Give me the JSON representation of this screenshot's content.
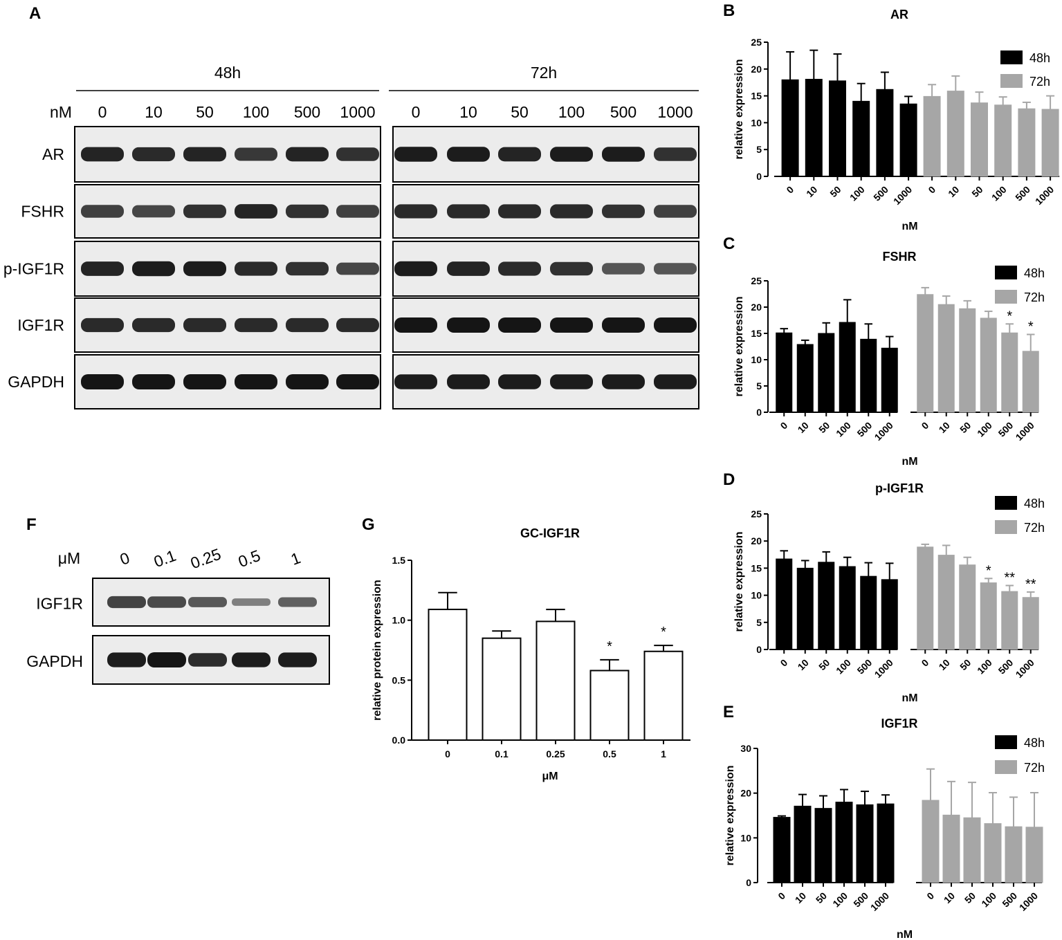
{
  "blot_a": {
    "letter": "A",
    "unit": "nM",
    "time_groups": [
      {
        "label": "48h",
        "concentrations": [
          "0",
          "10",
          "50",
          "100",
          "500",
          "1000"
        ]
      },
      {
        "label": "72h",
        "concentrations": [
          "0",
          "10",
          "50",
          "100",
          "500",
          "1000"
        ]
      }
    ],
    "proteins": [
      "AR",
      "FSHR",
      "p-IGF1R",
      "IGF1R",
      "GAPDH"
    ],
    "band_intensity": {
      "48h": [
        [
          0.9,
          0.85,
          0.9,
          0.75,
          0.9,
          0.8
        ],
        [
          0.7,
          0.65,
          0.8,
          0.9,
          0.8,
          0.7
        ],
        [
          0.9,
          0.95,
          0.95,
          0.85,
          0.8,
          0.65
        ],
        [
          0.85,
          0.85,
          0.85,
          0.85,
          0.85,
          0.85
        ],
        [
          1.0,
          1.0,
          1.0,
          1.0,
          1.0,
          1.0
        ]
      ],
      "72h": [
        [
          0.95,
          0.95,
          0.9,
          0.95,
          0.95,
          0.8
        ],
        [
          0.85,
          0.85,
          0.85,
          0.85,
          0.8,
          0.7
        ],
        [
          0.95,
          0.9,
          0.85,
          0.8,
          0.55,
          0.55
        ],
        [
          1.0,
          1.0,
          1.0,
          1.0,
          1.0,
          1.0
        ],
        [
          0.95,
          0.95,
          0.95,
          0.95,
          0.95,
          0.95
        ]
      ]
    }
  },
  "blot_f": {
    "letter": "F",
    "unit": "μM",
    "concentrations": [
      "0",
      "0.1",
      "0.25",
      "0.5",
      "1"
    ],
    "proteins": [
      "IGF1R",
      "GAPDH"
    ],
    "band_intensity": [
      [
        0.7,
        0.65,
        0.55,
        0.3,
        0.5
      ],
      [
        0.95,
        1.0,
        0.85,
        0.95,
        0.95
      ]
    ]
  },
  "colors": {
    "series_48h": "#000000",
    "series_72h": "#a6a6a6",
    "bar_white": "#ffffff",
    "blot_bg": "#ececec",
    "band": "#151515"
  },
  "chart_data": [
    {
      "id": "B",
      "letter": "B",
      "type": "bar",
      "title": "AR",
      "xlabel": "nM",
      "ylabel": "relative expression",
      "categories": [
        "0",
        "10",
        "50",
        "100",
        "500",
        "1000"
      ],
      "ylim": [
        0,
        25
      ],
      "yticks": [
        "0",
        "5",
        "10",
        "15",
        "20",
        "25"
      ],
      "legend": "top-right",
      "series": [
        {
          "name": "48h",
          "values": [
            18,
            18.1,
            17.8,
            14,
            16.2,
            13.5
          ],
          "errors": [
            5.2,
            5.4,
            5,
            3.3,
            3.2,
            1.4
          ],
          "stars": [
            "",
            "",
            "",
            "",
            "",
            ""
          ]
        },
        {
          "name": "72h",
          "values": [
            14.9,
            15.9,
            13.7,
            13.3,
            12.6,
            12.5
          ],
          "errors": [
            2.2,
            2.8,
            2,
            1.5,
            1.2,
            2.5
          ],
          "stars": [
            "",
            "",
            "",
            "",
            "",
            ""
          ]
        }
      ]
    },
    {
      "id": "C",
      "letter": "C",
      "type": "bar",
      "title": "FSHR",
      "xlabel": "nM",
      "ylabel": "relative expression",
      "categories": [
        "0",
        "10",
        "50",
        "100",
        "500",
        "1000"
      ],
      "ylim": [
        0,
        25
      ],
      "yticks": [
        "0",
        "5",
        "10",
        "15",
        "20",
        "25"
      ],
      "legend": "top-right",
      "series": [
        {
          "name": "48h",
          "values": [
            15.1,
            12.9,
            15,
            17.1,
            13.9,
            12.2
          ],
          "errors": [
            0.8,
            0.8,
            2,
            4.3,
            2.9,
            2.2
          ],
          "stars": [
            "",
            "",
            "",
            "",
            "",
            ""
          ]
        },
        {
          "name": "72h",
          "values": [
            22.4,
            20.5,
            19.7,
            17.9,
            15.1,
            11.6
          ],
          "errors": [
            1.3,
            1.6,
            1.5,
            1.3,
            1.7,
            3.2
          ],
          "stars": [
            "",
            "",
            "",
            "",
            "*",
            "*"
          ]
        }
      ]
    },
    {
      "id": "D",
      "letter": "D",
      "type": "bar",
      "title": "p-IGF1R",
      "xlabel": "nM",
      "ylabel": "relative expression",
      "categories": [
        "0",
        "10",
        "50",
        "100",
        "500",
        "1000"
      ],
      "ylim": [
        0,
        25
      ],
      "yticks": [
        "0",
        "5",
        "10",
        "15",
        "20",
        "25"
      ],
      "legend": "top-right",
      "series": [
        {
          "name": "48h",
          "values": [
            16.7,
            15,
            16.1,
            15.3,
            13.5,
            12.9
          ],
          "errors": [
            1.5,
            1.4,
            1.9,
            1.7,
            2.5,
            3
          ],
          "stars": [
            "",
            "",
            "",
            "",
            "",
            ""
          ]
        },
        {
          "name": "72h",
          "values": [
            18.9,
            17.4,
            15.6,
            12.3,
            10.7,
            9.6
          ],
          "errors": [
            0.5,
            1.8,
            1.4,
            0.8,
            1.1,
            1
          ],
          "stars": [
            "",
            "",
            "",
            "*",
            "**",
            "**"
          ]
        }
      ]
    },
    {
      "id": "E",
      "letter": "E",
      "type": "bar",
      "title": "IGF1R",
      "xlabel": "nM",
      "ylabel": "relative expression",
      "categories": [
        "0",
        "10",
        "50",
        "100",
        "500",
        "1000"
      ],
      "ylim": [
        0,
        30
      ],
      "yticks": [
        "0",
        "10",
        "20",
        "30"
      ],
      "legend": "top-right",
      "series": [
        {
          "name": "48h",
          "values": [
            14.6,
            17.1,
            16.6,
            18,
            17.4,
            17.6
          ],
          "errors": [
            0.3,
            2.6,
            2.8,
            2.8,
            3,
            2
          ],
          "stars": [
            "",
            "",
            "",
            "",
            "",
            ""
          ]
        },
        {
          "name": "72h",
          "values": [
            18.4,
            15.1,
            14.5,
            13.2,
            12.5,
            12.4
          ],
          "errors": [
            7,
            7.5,
            7.9,
            6.9,
            6.6,
            7.7
          ],
          "stars": [
            "",
            "",
            "",
            "",
            "",
            ""
          ]
        }
      ]
    },
    {
      "id": "G",
      "letter": "G",
      "type": "bar",
      "title": "GC-IGF1R",
      "xlabel": "μM",
      "ylabel": "relative protein expression",
      "categories": [
        "0",
        "0.1",
        "0.25",
        "0.5",
        "1"
      ],
      "ylim": [
        0,
        1.5
      ],
      "yticks": [
        "0.0",
        "0.5",
        "1.0",
        "1.5"
      ],
      "series": [
        {
          "values": [
            1.09,
            0.85,
            0.99,
            0.58,
            0.74
          ],
          "errors": [
            0.14,
            0.06,
            0.1,
            0.09,
            0.05
          ],
          "stars": [
            "",
            "",
            "",
            "*",
            "*"
          ]
        }
      ]
    }
  ]
}
